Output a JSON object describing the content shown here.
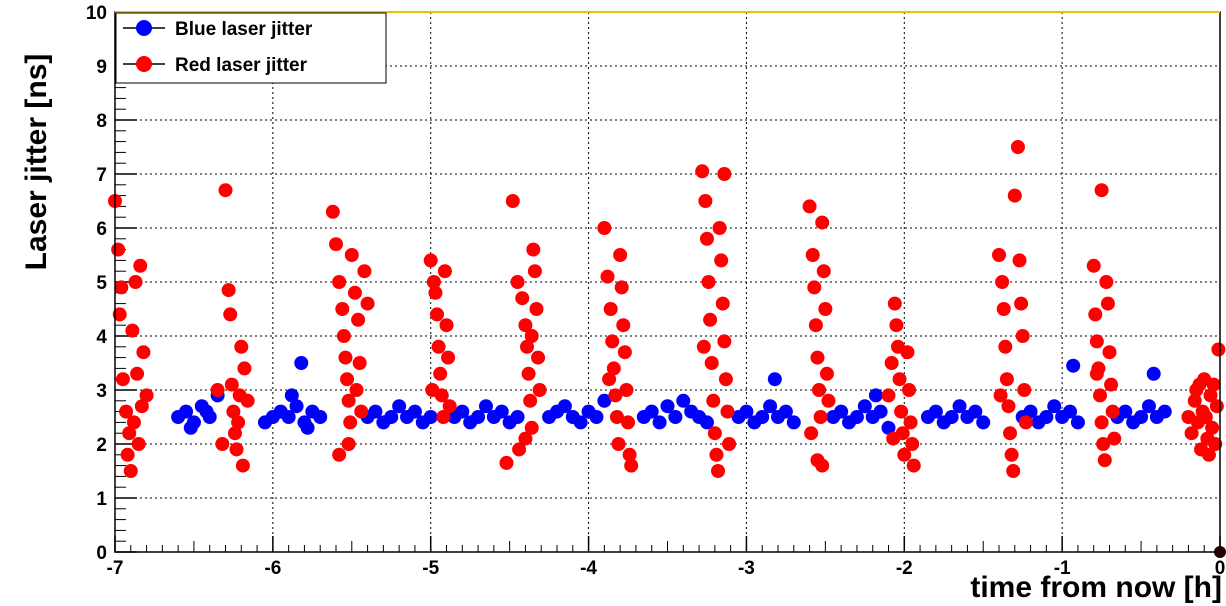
{
  "chart_data": {
    "type": "scatter",
    "xlabel": "time from now [h]",
    "ylabel": "Laser jitter [ns]",
    "xlim": [
      -7,
      0
    ],
    "ylim": [
      0,
      10
    ],
    "xticks": [
      "-7",
      "-6",
      "-5",
      "-4",
      "-3",
      "-2",
      "-1",
      "0"
    ],
    "yticks": [
      "0",
      "1",
      "2",
      "3",
      "4",
      "5",
      "6",
      "7",
      "8",
      "9",
      "10"
    ],
    "grid": true,
    "legend_position": "top-left",
    "colors": {
      "blue": "#0000ff",
      "red": "#ff0000",
      "frame_top": "#f0c000"
    },
    "series": [
      {
        "name": "Blue laser jitter",
        "color": "#0000ff",
        "points": [
          [
            -6.6,
            2.5
          ],
          [
            -6.55,
            2.6
          ],
          [
            -6.5,
            2.4
          ],
          [
            -6.45,
            2.7
          ],
          [
            -6.4,
            2.5
          ],
          [
            -6.35,
            2.9
          ],
          [
            -6.52,
            2.3
          ],
          [
            -6.42,
            2.6
          ],
          [
            -6.05,
            2.4
          ],
          [
            -6.0,
            2.5
          ],
          [
            -5.95,
            2.6
          ],
          [
            -5.9,
            2.5
          ],
          [
            -5.85,
            2.7
          ],
          [
            -5.8,
            2.4
          ],
          [
            -5.75,
            2.6
          ],
          [
            -5.7,
            2.5
          ],
          [
            -5.82,
            3.5
          ],
          [
            -5.88,
            2.9
          ],
          [
            -5.78,
            2.3
          ],
          [
            -5.4,
            2.5
          ],
          [
            -5.35,
            2.6
          ],
          [
            -5.3,
            2.4
          ],
          [
            -5.25,
            2.5
          ],
          [
            -5.2,
            2.7
          ],
          [
            -5.15,
            2.5
          ],
          [
            -5.1,
            2.6
          ],
          [
            -5.05,
            2.4
          ],
          [
            -5.0,
            2.5
          ],
          [
            -4.85,
            2.5
          ],
          [
            -4.8,
            2.6
          ],
          [
            -4.75,
            2.4
          ],
          [
            -4.7,
            2.5
          ],
          [
            -4.65,
            2.7
          ],
          [
            -4.6,
            2.5
          ],
          [
            -4.55,
            2.6
          ],
          [
            -4.5,
            2.4
          ],
          [
            -4.45,
            2.5
          ],
          [
            -4.25,
            2.5
          ],
          [
            -4.2,
            2.6
          ],
          [
            -4.15,
            2.7
          ],
          [
            -4.1,
            2.5
          ],
          [
            -4.05,
            2.4
          ],
          [
            -4.0,
            2.6
          ],
          [
            -3.95,
            2.5
          ],
          [
            -3.9,
            2.8
          ],
          [
            -3.65,
            2.5
          ],
          [
            -3.6,
            2.6
          ],
          [
            -3.55,
            2.4
          ],
          [
            -3.5,
            2.7
          ],
          [
            -3.45,
            2.5
          ],
          [
            -3.4,
            2.8
          ],
          [
            -3.35,
            2.6
          ],
          [
            -3.3,
            2.5
          ],
          [
            -3.25,
            2.4
          ],
          [
            -3.05,
            2.5
          ],
          [
            -3.0,
            2.6
          ],
          [
            -2.95,
            2.4
          ],
          [
            -2.9,
            2.5
          ],
          [
            -2.85,
            2.7
          ],
          [
            -2.8,
            2.5
          ],
          [
            -2.75,
            2.6
          ],
          [
            -2.7,
            2.4
          ],
          [
            -2.82,
            3.2
          ],
          [
            -2.45,
            2.5
          ],
          [
            -2.4,
            2.6
          ],
          [
            -2.35,
            2.4
          ],
          [
            -2.3,
            2.5
          ],
          [
            -2.25,
            2.7
          ],
          [
            -2.2,
            2.5
          ],
          [
            -2.15,
            2.6
          ],
          [
            -2.1,
            2.3
          ],
          [
            -2.18,
            2.9
          ],
          [
            -1.85,
            2.5
          ],
          [
            -1.8,
            2.6
          ],
          [
            -1.75,
            2.4
          ],
          [
            -1.7,
            2.5
          ],
          [
            -1.65,
            2.7
          ],
          [
            -1.6,
            2.5
          ],
          [
            -1.55,
            2.6
          ],
          [
            -1.5,
            2.4
          ],
          [
            -1.25,
            2.5
          ],
          [
            -1.2,
            2.6
          ],
          [
            -1.15,
            2.4
          ],
          [
            -1.1,
            2.5
          ],
          [
            -1.05,
            2.7
          ],
          [
            -1.0,
            2.5
          ],
          [
            -0.95,
            2.6
          ],
          [
            -0.9,
            2.4
          ],
          [
            -0.93,
            3.45
          ],
          [
            -0.65,
            2.5
          ],
          [
            -0.6,
            2.6
          ],
          [
            -0.55,
            2.4
          ],
          [
            -0.5,
            2.5
          ],
          [
            -0.45,
            2.7
          ],
          [
            -0.4,
            2.5
          ],
          [
            -0.35,
            2.6
          ],
          [
            -0.42,
            3.3
          ]
        ]
      },
      {
        "name": "Red laser jitter",
        "color": "#ff0000",
        "points": [
          [
            -7.0,
            6.5
          ],
          [
            -6.98,
            5.6
          ],
          [
            -6.96,
            4.9
          ],
          [
            -6.97,
            4.4
          ],
          [
            -6.95,
            3.2
          ],
          [
            -6.93,
            2.6
          ],
          [
            -6.91,
            2.2
          ],
          [
            -6.92,
            1.8
          ],
          [
            -6.9,
            1.5
          ],
          [
            -6.88,
            2.4
          ],
          [
            -6.86,
            3.3
          ],
          [
            -6.84,
            5.3
          ],
          [
            -6.82,
            3.7
          ],
          [
            -6.8,
            2.9
          ],
          [
            -6.87,
            5.0
          ],
          [
            -6.89,
            4.1
          ],
          [
            -6.85,
            2.0
          ],
          [
            -6.83,
            2.7
          ],
          [
            -6.3,
            6.7
          ],
          [
            -6.28,
            4.85
          ],
          [
            -6.27,
            4.4
          ],
          [
            -6.26,
            3.1
          ],
          [
            -6.25,
            2.6
          ],
          [
            -6.24,
            2.2
          ],
          [
            -6.23,
            1.9
          ],
          [
            -6.22,
            2.4
          ],
          [
            -6.2,
            3.8
          ],
          [
            -6.18,
            3.4
          ],
          [
            -6.16,
            2.8
          ],
          [
            -6.35,
            3.0
          ],
          [
            -6.32,
            2.0
          ],
          [
            -6.19,
            1.6
          ],
          [
            -6.21,
            2.9
          ],
          [
            -5.62,
            6.3
          ],
          [
            -5.6,
            5.7
          ],
          [
            -5.58,
            5.0
          ],
          [
            -5.56,
            4.5
          ],
          [
            -5.55,
            4.0
          ],
          [
            -5.54,
            3.6
          ],
          [
            -5.53,
            3.2
          ],
          [
            -5.52,
            2.8
          ],
          [
            -5.51,
            2.4
          ],
          [
            -5.5,
            5.5
          ],
          [
            -5.48,
            4.8
          ],
          [
            -5.46,
            4.3
          ],
          [
            -5.45,
            3.5
          ],
          [
            -5.44,
            2.6
          ],
          [
            -5.42,
            5.2
          ],
          [
            -5.4,
            4.6
          ],
          [
            -5.52,
            2.0
          ],
          [
            -5.58,
            1.8
          ],
          [
            -5.47,
            3.0
          ],
          [
            -5.0,
            5.4
          ],
          [
            -4.98,
            5.0
          ],
          [
            -4.96,
            4.4
          ],
          [
            -4.95,
            3.8
          ],
          [
            -4.94,
            3.3
          ],
          [
            -4.93,
            2.9
          ],
          [
            -4.92,
            2.5
          ],
          [
            -4.91,
            5.2
          ],
          [
            -4.9,
            4.2
          ],
          [
            -4.89,
            3.6
          ],
          [
            -4.88,
            2.7
          ],
          [
            -4.97,
            4.8
          ],
          [
            -4.99,
            3.0
          ],
          [
            -4.48,
            6.5
          ],
          [
            -4.45,
            5.0
          ],
          [
            -4.42,
            4.7
          ],
          [
            -4.4,
            4.2
          ],
          [
            -4.39,
            3.8
          ],
          [
            -4.38,
            3.3
          ],
          [
            -4.37,
            2.8
          ],
          [
            -4.36,
            2.3
          ],
          [
            -4.35,
            5.6
          ],
          [
            -4.34,
            5.2
          ],
          [
            -4.33,
            4.5
          ],
          [
            -4.32,
            3.6
          ],
          [
            -4.31,
            3.0
          ],
          [
            -4.44,
            1.9
          ],
          [
            -4.4,
            2.1
          ],
          [
            -4.52,
            1.65
          ],
          [
            -4.36,
            4.0
          ],
          [
            -3.9,
            6.0
          ],
          [
            -3.88,
            5.1
          ],
          [
            -3.86,
            4.5
          ],
          [
            -3.85,
            3.9
          ],
          [
            -3.84,
            3.4
          ],
          [
            -3.83,
            2.9
          ],
          [
            -3.82,
            2.5
          ],
          [
            -3.81,
            2.0
          ],
          [
            -3.8,
            5.5
          ],
          [
            -3.79,
            4.9
          ],
          [
            -3.78,
            4.2
          ],
          [
            -3.77,
            3.7
          ],
          [
            -3.76,
            3.0
          ],
          [
            -3.75,
            2.4
          ],
          [
            -3.74,
            1.8
          ],
          [
            -3.73,
            1.6
          ],
          [
            -3.87,
            3.2
          ],
          [
            -3.28,
            7.05
          ],
          [
            -3.26,
            6.5
          ],
          [
            -3.25,
            5.8
          ],
          [
            -3.24,
            5.0
          ],
          [
            -3.23,
            4.3
          ],
          [
            -3.22,
            3.5
          ],
          [
            -3.21,
            2.8
          ],
          [
            -3.2,
            2.2
          ],
          [
            -3.19,
            1.8
          ],
          [
            -3.18,
            1.5
          ],
          [
            -3.17,
            6.0
          ],
          [
            -3.16,
            5.4
          ],
          [
            -3.15,
            4.6
          ],
          [
            -3.14,
            3.9
          ],
          [
            -3.13,
            3.2
          ],
          [
            -3.12,
            2.6
          ],
          [
            -3.11,
            2.0
          ],
          [
            -3.27,
            3.8
          ],
          [
            -3.14,
            7.0
          ],
          [
            -2.6,
            6.4
          ],
          [
            -2.58,
            5.5
          ],
          [
            -2.57,
            4.9
          ],
          [
            -2.56,
            4.2
          ],
          [
            -2.55,
            3.6
          ],
          [
            -2.54,
            3.0
          ],
          [
            -2.53,
            2.5
          ],
          [
            -2.52,
            6.1
          ],
          [
            -2.51,
            5.2
          ],
          [
            -2.5,
            4.5
          ],
          [
            -2.49,
            3.3
          ],
          [
            -2.48,
            2.8
          ],
          [
            -2.55,
            1.7
          ],
          [
            -2.52,
            1.6
          ],
          [
            -2.59,
            2.2
          ],
          [
            -2.1,
            2.9
          ],
          [
            -2.08,
            3.5
          ],
          [
            -2.06,
            4.6
          ],
          [
            -2.05,
            4.2
          ],
          [
            -2.04,
            3.8
          ],
          [
            -2.03,
            3.2
          ],
          [
            -2.02,
            2.6
          ],
          [
            -2.01,
            2.2
          ],
          [
            -2.0,
            1.8
          ],
          [
            -1.98,
            3.7
          ],
          [
            -1.97,
            3.0
          ],
          [
            -1.96,
            2.4
          ],
          [
            -1.95,
            2.0
          ],
          [
            -1.94,
            1.6
          ],
          [
            -2.07,
            2.1
          ],
          [
            -1.4,
            5.5
          ],
          [
            -1.38,
            5.0
          ],
          [
            -1.37,
            4.5
          ],
          [
            -1.36,
            3.8
          ],
          [
            -1.35,
            3.2
          ],
          [
            -1.34,
            2.7
          ],
          [
            -1.33,
            2.2
          ],
          [
            -1.32,
            1.8
          ],
          [
            -1.31,
            1.5
          ],
          [
            -1.3,
            6.6
          ],
          [
            -1.28,
            7.5
          ],
          [
            -1.27,
            5.4
          ],
          [
            -1.26,
            4.6
          ],
          [
            -1.25,
            4.0
          ],
          [
            -1.24,
            3.0
          ],
          [
            -1.23,
            2.4
          ],
          [
            -1.39,
            2.9
          ],
          [
            -0.8,
            5.3
          ],
          [
            -0.79,
            4.4
          ],
          [
            -0.78,
            3.9
          ],
          [
            -0.77,
            3.4
          ],
          [
            -0.76,
            2.9
          ],
          [
            -0.75,
            2.4
          ],
          [
            -0.74,
            2.0
          ],
          [
            -0.73,
            1.7
          ],
          [
            -0.75,
            6.7
          ],
          [
            -0.72,
            5.0
          ],
          [
            -0.71,
            4.6
          ],
          [
            -0.7,
            3.7
          ],
          [
            -0.69,
            3.1
          ],
          [
            -0.68,
            2.6
          ],
          [
            -0.67,
            2.1
          ],
          [
            -0.78,
            3.3
          ],
          [
            -0.2,
            2.5
          ],
          [
            -0.18,
            2.2
          ],
          [
            -0.16,
            2.8
          ],
          [
            -0.15,
            3.0
          ],
          [
            -0.14,
            2.4
          ],
          [
            -0.12,
            1.9
          ],
          [
            -0.11,
            2.6
          ],
          [
            -0.1,
            3.2
          ],
          [
            -0.08,
            2.1
          ],
          [
            -0.07,
            1.8
          ],
          [
            -0.06,
            2.9
          ],
          [
            -0.05,
            2.3
          ],
          [
            -0.04,
            3.1
          ],
          [
            -0.03,
            2.0
          ],
          [
            -0.02,
            2.7
          ],
          [
            -0.01,
            3.75
          ],
          [
            -0.09,
            2.5
          ],
          [
            -0.13,
            3.1
          ]
        ]
      }
    ],
    "endpoint_marker": {
      "x": 0,
      "y": 0,
      "color": "#2a0000"
    }
  }
}
